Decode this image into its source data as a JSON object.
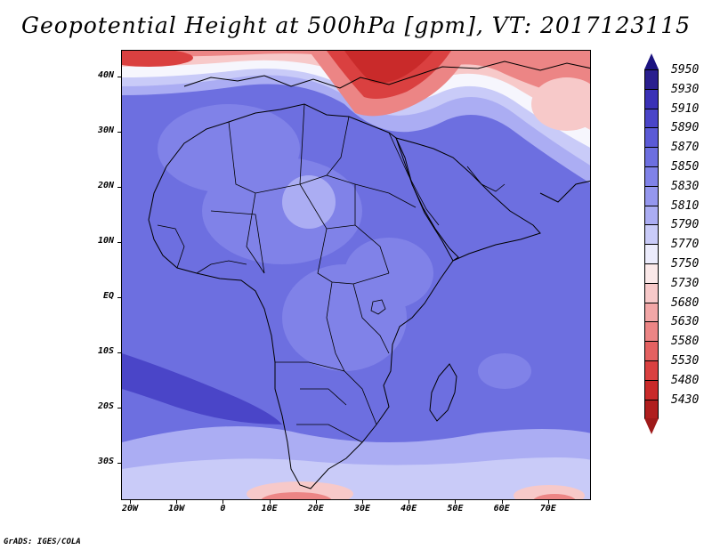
{
  "title": "Geopotential Height at 500hPa [gpm], VT: 2017123115",
  "credit": "GrADS: IGES/COLA",
  "lat_labels": [
    "40N",
    "30N",
    "20N",
    "10N",
    "EQ",
    "10S",
    "20S",
    "30S"
  ],
  "lon_labels": [
    "20W",
    "10W",
    "0",
    "10E",
    "20E",
    "30E",
    "40E",
    "50E",
    "60E",
    "70E"
  ],
  "colorbar": {
    "levels": [
      "5950",
      "5930",
      "5910",
      "5890",
      "5870",
      "5850",
      "5830",
      "5810",
      "5790",
      "5770",
      "5750",
      "5730",
      "5680",
      "5630",
      "5580",
      "5530",
      "5480",
      "5430"
    ],
    "colors": [
      "#2a1f8f",
      "#3a31b6",
      "#4a45c8",
      "#5b5ad6",
      "#6d6fe0",
      "#8082e8",
      "#9597ee",
      "#abadf3",
      "#c9cbf8",
      "#ececfc",
      "#fbe9e9",
      "#f7c9c9",
      "#f2a7a7",
      "#ec8585",
      "#e46161",
      "#da4040",
      "#c92a2a",
      "#b01e1e"
    ],
    "top_arrow_color": "#1c1480",
    "bottom_arrow_color": "#9e1a1a"
  },
  "map_colors": {
    "base": "#6d6fe0",
    "deep_blue": "#4a45c8",
    "mid_blue": "#8082e8",
    "light_blue": "#abadf3",
    "pale_blue": "#c9cbf8",
    "white": "#f6f6fd",
    "pale_red": "#f7c9c9",
    "mid_red": "#ec8585",
    "red": "#da4040",
    "dark_red": "#c92a2a"
  }
}
